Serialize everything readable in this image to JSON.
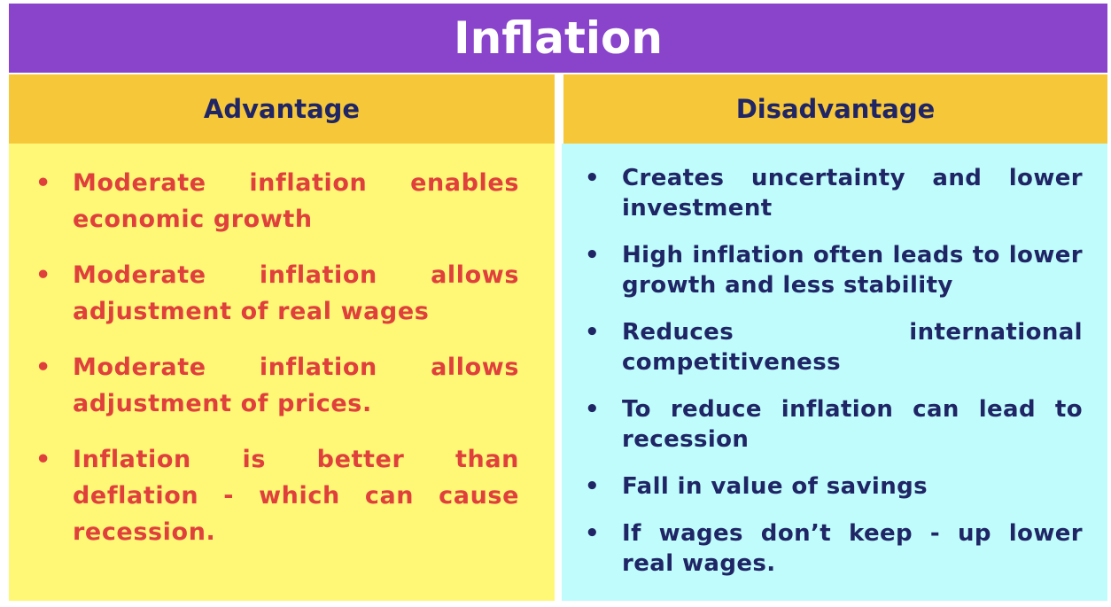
{
  "title": "Inflation",
  "columns": {
    "advantage": {
      "header": "Advantage",
      "items": [
        "Moderate inflation enables economic growth",
        "Moderate inflation allows adjustment of real wages",
        "Moderate inflation allows adjustment of prices.",
        "Inflation is better than deflation - which can cause recession."
      ]
    },
    "disadvantage": {
      "header": "Disadvantage",
      "items": [
        "Creates uncertainty and lower investment",
        "High inflation often leads to lower growth and less stability",
        "Reduces international competitiveness",
        "To reduce inflation can lead to recession",
        "Fall in value of savings",
        "If wages don’t keep - up lower real wages."
      ]
    }
  },
  "bullet_glyph": "•",
  "colors": {
    "title_background": "#8a44cc",
    "title_text": "#ffffff",
    "header_background": "#f7c73a",
    "header_text": "#1f2565",
    "advantage_background": "#fff877",
    "advantage_text": "#e0403c",
    "disadvantage_background": "#bffcfb",
    "disadvantage_text": "#1f2565"
  }
}
